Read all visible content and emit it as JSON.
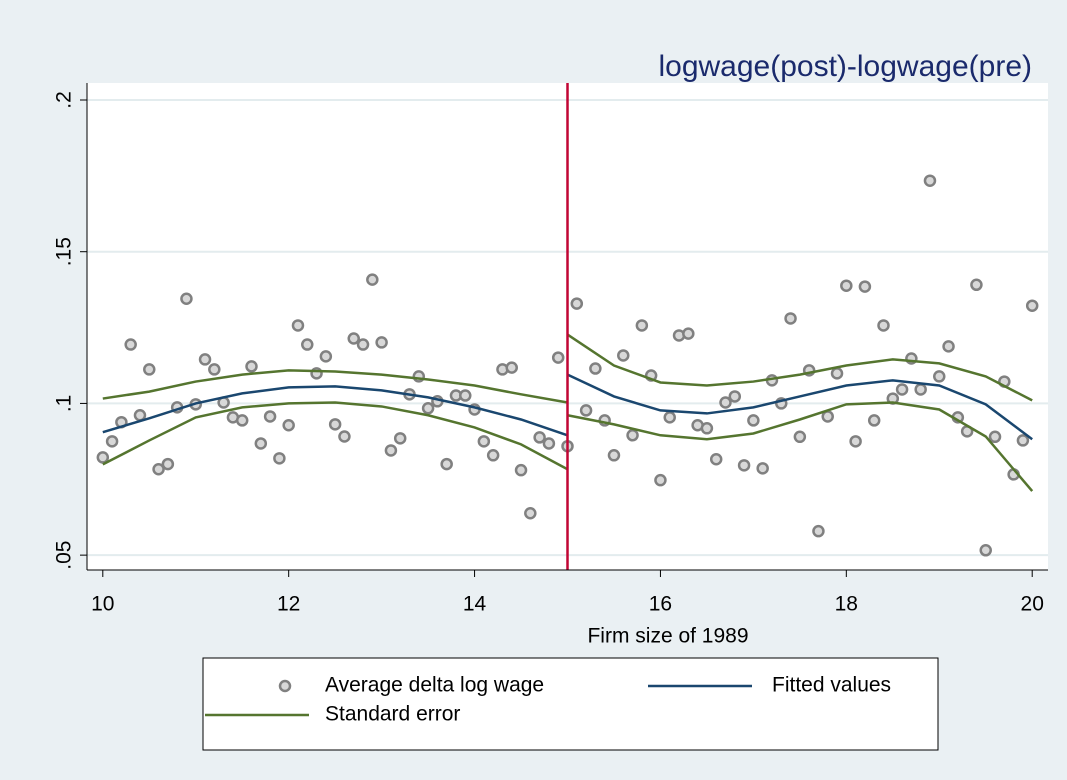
{
  "chart_data": {
    "type": "scatter",
    "title": "logwage(post)-logwage(pre)",
    "x_label": "Firm size of 1989",
    "xlim": [
      9.83,
      20.17
    ],
    "ylim": [
      0.0451,
      0.2056
    ],
    "xticks": [
      10,
      12,
      14,
      16,
      18,
      20
    ],
    "yticks": [
      {
        "value": 0.05,
        "label": ".05"
      },
      {
        "value": 0.1,
        "label": ".1"
      },
      {
        "value": 0.15,
        "label": ".15"
      },
      {
        "value": 0.2,
        "label": ".2"
      }
    ],
    "grid": true,
    "vline": 15,
    "vline_color": "#c10534",
    "series": [
      {
        "name": "Average delta log wage",
        "color": "#808080",
        "x": [
          10.0,
          10.1,
          10.2,
          10.3,
          10.4,
          10.5,
          10.6,
          10.7,
          10.8,
          10.9,
          11.0,
          11.1,
          11.2,
          11.3,
          11.4,
          11.5,
          11.6,
          11.7,
          11.8,
          11.9,
          12.0,
          12.1,
          12.2,
          12.3,
          12.4,
          12.5,
          12.6,
          12.7,
          12.8,
          12.9,
          13.0,
          13.1,
          13.2,
          13.3,
          13.4,
          13.5,
          13.6,
          13.7,
          13.8,
          13.9,
          14.0,
          14.1,
          14.2,
          14.3,
          14.4,
          14.5,
          14.6,
          14.7,
          14.8,
          14.9,
          15.0,
          15.1,
          15.2,
          15.3,
          15.4,
          15.5,
          15.6,
          15.7,
          15.8,
          15.9,
          16.0,
          16.1,
          16.2,
          16.3,
          16.4,
          16.5,
          16.6,
          16.7,
          16.8,
          16.9,
          17.0,
          17.1,
          17.2,
          17.3,
          17.4,
          17.5,
          17.6,
          17.7,
          17.8,
          17.9,
          18.0,
          18.1,
          18.2,
          18.3,
          18.4,
          18.5,
          18.6,
          18.7,
          18.8,
          18.9,
          19.0,
          19.1,
          19.2,
          19.3,
          19.4,
          19.5,
          19.6,
          19.7,
          19.8,
          19.9,
          20.0
        ],
        "values": [
          0.0822,
          0.0875,
          0.0938,
          0.1194,
          0.0961,
          0.1112,
          0.0783,
          0.08,
          0.0987,
          0.1345,
          0.0997,
          0.1145,
          0.1112,
          0.1003,
          0.0954,
          0.0944,
          0.1122,
          0.0868,
          0.0957,
          0.0819,
          0.0928,
          0.1257,
          0.1194,
          0.1099,
          0.1155,
          0.0931,
          0.0891,
          0.1214,
          0.1194,
          0.1408,
          0.1201,
          0.0845,
          0.0885,
          0.103,
          0.1089,
          0.0984,
          0.1007,
          0.08,
          0.1026,
          0.1026,
          0.098,
          0.0875,
          0.0829,
          0.1112,
          0.1118,
          0.078,
          0.0638,
          0.0888,
          0.0868,
          0.1151,
          0.0859,
          0.1329,
          0.0977,
          0.1115,
          0.0944,
          0.0829,
          0.1158,
          0.0895,
          0.1257,
          0.1092,
          0.0747,
          0.0954,
          0.1224,
          0.123,
          0.0928,
          0.0918,
          0.0816,
          0.1003,
          0.1023,
          0.0796,
          0.0944,
          0.0786,
          0.1076,
          0.1,
          0.128,
          0.089,
          0.1109,
          0.0579,
          0.0957,
          0.1099,
          0.1388,
          0.0875,
          0.1385,
          0.0944,
          0.1257,
          0.1016,
          0.1046,
          0.1148,
          0.1046,
          0.1734,
          0.1089,
          0.1188,
          0.0954,
          0.0908,
          0.1391,
          0.0516,
          0.089,
          0.1072,
          0.0766,
          0.0878,
          0.1322
        ]
      },
      {
        "name": "Fitted values",
        "color": "#1a476f",
        "x": [
          10,
          10.5,
          11,
          11.5,
          12,
          12.5,
          13,
          13.5,
          14,
          14.5,
          15,
          15,
          15,
          15.5,
          16,
          16.5,
          17,
          17.5,
          18,
          18.5,
          19,
          19.5,
          20
        ],
        "values": [
          0.0905,
          0.0951,
          0.1,
          0.1033,
          0.1053,
          0.1056,
          0.1043,
          0.102,
          0.0987,
          0.0947,
          0.0895,
          null,
          0.1095,
          0.1023,
          0.0977,
          0.0967,
          0.0987,
          0.1023,
          0.1059,
          0.1076,
          0.1059,
          0.0997,
          0.0882
        ]
      },
      {
        "name": "Standard error",
        "color": "#55752f",
        "x": [
          10,
          10.5,
          11,
          11.5,
          12,
          12.5,
          13,
          13.5,
          14,
          14.5,
          15,
          15,
          15,
          15.5,
          16,
          16.5,
          17,
          17.5,
          18,
          18.5,
          19,
          19.5,
          20
        ],
        "upper": [
          0.1016,
          0.1039,
          0.1072,
          0.1095,
          0.1109,
          0.1105,
          0.1095,
          0.1079,
          0.1059,
          0.103,
          0.1003,
          null,
          0.1227,
          0.1125,
          0.1069,
          0.1059,
          0.1072,
          0.1095,
          0.1125,
          0.1145,
          0.1132,
          0.1089,
          0.101
        ],
        "lower": [
          0.0799,
          0.0878,
          0.0954,
          0.0987,
          0.1,
          0.1003,
          0.099,
          0.0961,
          0.0921,
          0.0865,
          0.0783,
          null,
          0.0961,
          0.0931,
          0.0895,
          0.0882,
          0.0901,
          0.0947,
          0.0997,
          0.1003,
          0.098,
          0.0891,
          0.0711
        ]
      }
    ]
  }
}
